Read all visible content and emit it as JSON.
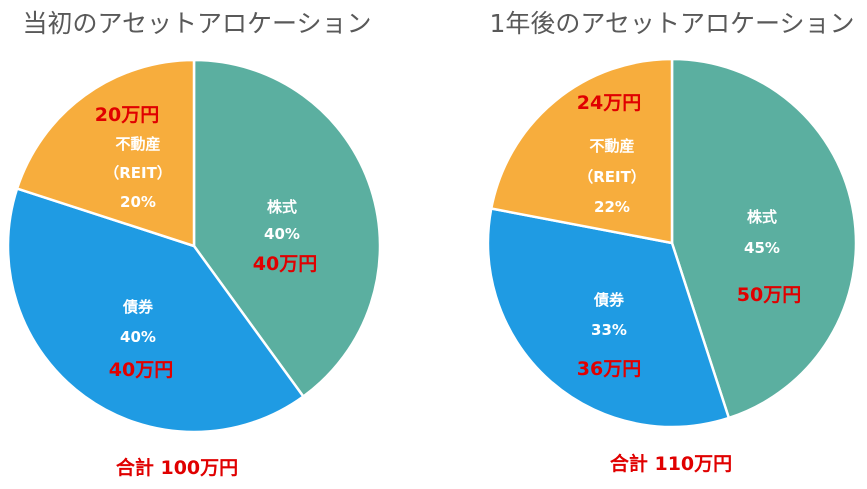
{
  "colors": {
    "stocks": "#5bafa0",
    "bonds": "#1f9be3",
    "reit": "#f7ad3d",
    "label": "#ffffff",
    "amount": "#e00000",
    "title": "#595959"
  },
  "chart_data": [
    {
      "type": "pie",
      "title": "当初のアセットアロケーション",
      "total": "合計 100万円",
      "slices": [
        {
          "key": "stocks",
          "name": "株式",
          "value": 40,
          "percent": "40%",
          "amount": "40万円"
        },
        {
          "key": "bonds",
          "name": "債券",
          "value": 40,
          "percent": "40%",
          "amount": "40万円"
        },
        {
          "key": "reit",
          "name": "不動産",
          "name2": "（REIT）",
          "value": 20,
          "percent": "20%",
          "amount": "20万円"
        }
      ]
    },
    {
      "type": "pie",
      "title": "1年後のアセットアロケーション",
      "total": "合計 110万円",
      "slices": [
        {
          "key": "stocks",
          "name": "株式",
          "value": 45,
          "percent": "45%",
          "amount": "50万円"
        },
        {
          "key": "bonds",
          "name": "債券",
          "value": 33,
          "percent": "33%",
          "amount": "36万円"
        },
        {
          "key": "reit",
          "name": "不動産",
          "name2": "（REIT）",
          "value": 22,
          "percent": "22%",
          "amount": "24万円"
        }
      ]
    }
  ]
}
